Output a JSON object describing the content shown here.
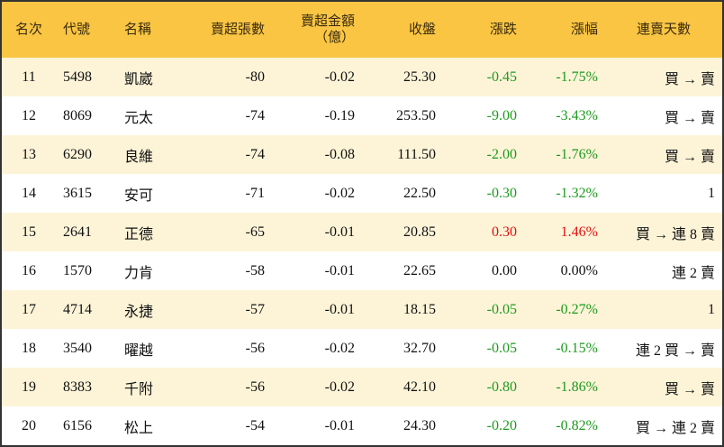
{
  "table": {
    "header": [
      "名次",
      "代號",
      "名稱",
      "賣超張數",
      "賣超金額\n（億）",
      "收盤",
      "漲跌",
      "漲幅",
      "連賣天數"
    ],
    "rows": [
      [
        "11",
        "5498",
        "凱崴",
        "-80",
        "-0.02",
        "25.30",
        "-0.45",
        "-1.75%",
        "買 → 賣"
      ],
      [
        "12",
        "8069",
        "元太",
        "-74",
        "-0.19",
        "253.50",
        "-9.00",
        "-3.43%",
        "買 → 賣"
      ],
      [
        "13",
        "6290",
        "良維",
        "-74",
        "-0.08",
        "111.50",
        "-2.00",
        "-1.76%",
        "買 → 賣"
      ],
      [
        "14",
        "3615",
        "安可",
        "-71",
        "-0.02",
        "22.50",
        "-0.30",
        "-1.32%",
        "1"
      ],
      [
        "15",
        "2641",
        "正德",
        "-65",
        "-0.01",
        "20.85",
        "0.30",
        "1.46%",
        "買 → 連 8 賣"
      ],
      [
        "16",
        "1570",
        "力肯",
        "-58",
        "-0.01",
        "22.65",
        "0.00",
        "0.00%",
        "連 2 賣"
      ],
      [
        "17",
        "4714",
        "永捷",
        "-57",
        "-0.01",
        "18.15",
        "-0.05",
        "-0.27%",
        "1"
      ],
      [
        "18",
        "3540",
        "曜越",
        "-56",
        "-0.02",
        "32.70",
        "-0.05",
        "-0.15%",
        "連 2 買 → 賣"
      ],
      [
        "19",
        "8383",
        "千附",
        "-56",
        "-0.02",
        "42.10",
        "-0.80",
        "-1.86%",
        "買 → 賣"
      ],
      [
        "20",
        "6156",
        "松上",
        "-54",
        "-0.01",
        "24.30",
        "-0.20",
        "-0.82%",
        "買 → 連 2 賣"
      ]
    ]
  }
}
